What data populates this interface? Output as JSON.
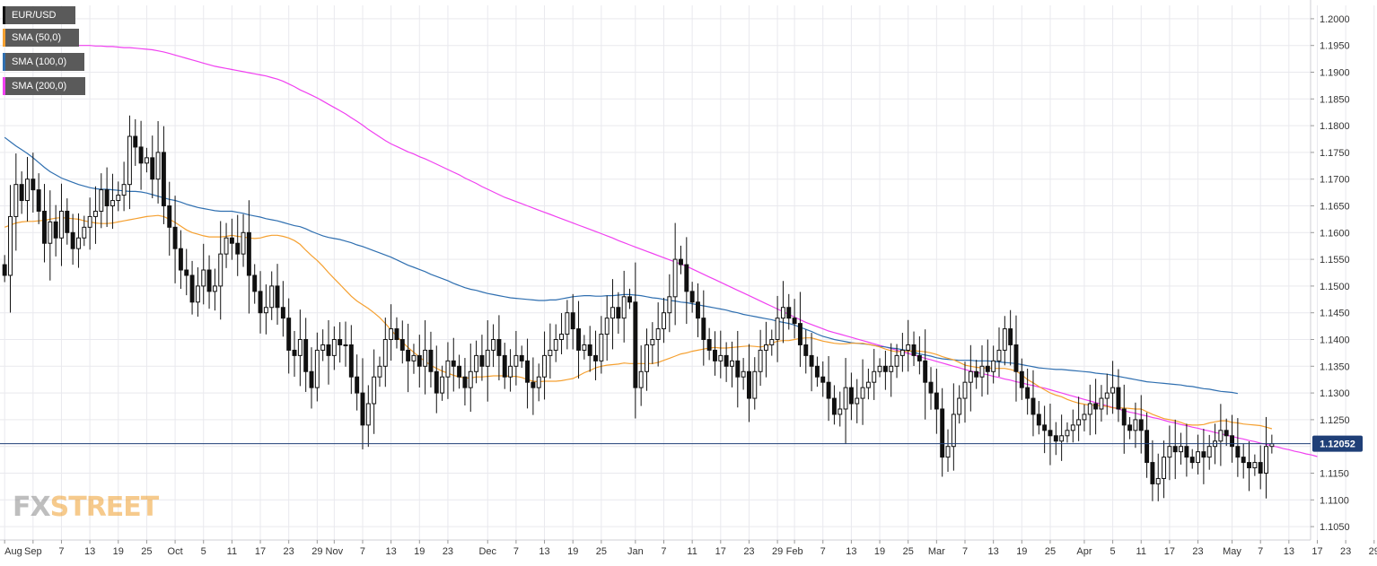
{
  "chart_data": {
    "type": "candlestick",
    "title": "EUR/USD",
    "current_price": "1.12052",
    "colors": {
      "background": "#ffffff",
      "grid": "#e9e9ee",
      "candle_up_fill": "#ffffff",
      "candle_down_fill": "#111111",
      "candle_outline": "#111111",
      "sma50": "#f5a030",
      "sma100": "#2f6fb0",
      "sma200": "#f040f0",
      "price_line": "#1f3f77",
      "price_label_bg": "#1f3f77"
    },
    "legend": [
      {
        "label": "EUR/USD",
        "color": "#111111"
      },
      {
        "label": "SMA (50,0)",
        "color": "#f5a030"
      },
      {
        "label": "SMA (100,0)",
        "color": "#2f6fb0"
      },
      {
        "label": "SMA (200,0)",
        "color": "#f040f0"
      }
    ],
    "y_axis": {
      "range": [
        1.1025,
        1.2025
      ],
      "ticks": [
        "1.2000",
        "1.1950",
        "1.1900",
        "1.1850",
        "1.1800",
        "1.1750",
        "1.1700",
        "1.1650",
        "1.1600",
        "1.1550",
        "1.1500",
        "1.1450",
        "1.1400",
        "1.1350",
        "1.1300",
        "1.1250",
        "1.1200",
        "1.1150",
        "1.1100",
        "1.1050"
      ]
    },
    "x_axis": {
      "labels": [
        {
          "i": 0,
          "text": "Aug"
        },
        {
          "i": 5,
          "text": "Sep"
        },
        {
          "i": 10,
          "text": "7"
        },
        {
          "i": 15,
          "text": "13"
        },
        {
          "i": 20,
          "text": "19"
        },
        {
          "i": 25,
          "text": "25"
        },
        {
          "i": 30,
          "text": "Oct"
        },
        {
          "i": 35,
          "text": "5"
        },
        {
          "i": 40,
          "text": "11"
        },
        {
          "i": 45,
          "text": "17"
        },
        {
          "i": 50,
          "text": "23"
        },
        {
          "i": 55,
          "text": "29"
        },
        {
          "i": 58,
          "text": "Nov"
        },
        {
          "i": 63,
          "text": "7"
        },
        {
          "i": 68,
          "text": "13"
        },
        {
          "i": 73,
          "text": "19"
        },
        {
          "i": 78,
          "text": "23"
        },
        {
          "i": 85,
          "text": "Dec"
        },
        {
          "i": 90,
          "text": "7"
        },
        {
          "i": 95,
          "text": "13"
        },
        {
          "i": 100,
          "text": "19"
        },
        {
          "i": 105,
          "text": "25"
        },
        {
          "i": 111,
          "text": "Jan"
        },
        {
          "i": 116,
          "text": "7"
        },
        {
          "i": 121,
          "text": "11"
        },
        {
          "i": 126,
          "text": "17"
        },
        {
          "i": 131,
          "text": "23"
        },
        {
          "i": 136,
          "text": "29"
        },
        {
          "i": 139,
          "text": "Feb"
        },
        {
          "i": 144,
          "text": "7"
        },
        {
          "i": 149,
          "text": "13"
        },
        {
          "i": 154,
          "text": "19"
        },
        {
          "i": 159,
          "text": "25"
        },
        {
          "i": 164,
          "text": "Mar"
        },
        {
          "i": 169,
          "text": "7"
        },
        {
          "i": 174,
          "text": "13"
        },
        {
          "i": 179,
          "text": "19"
        },
        {
          "i": 184,
          "text": "25"
        },
        {
          "i": 190,
          "text": "Apr"
        },
        {
          "i": 195,
          "text": "5"
        },
        {
          "i": 200,
          "text": "11"
        },
        {
          "i": 205,
          "text": "17"
        },
        {
          "i": 210,
          "text": "23"
        },
        {
          "i": 216,
          "text": "May"
        },
        {
          "i": 221,
          "text": "7"
        },
        {
          "i": 226,
          "text": "13"
        },
        {
          "i": 231,
          "text": "17"
        },
        {
          "i": 236,
          "text": "23"
        },
        {
          "i": 241,
          "text": "29"
        }
      ]
    },
    "candles_note": "OHLC estimated from chart; indices are trading-day slots",
    "closes": [
      1.152,
      1.163,
      1.169,
      1.166,
      1.17,
      1.168,
      1.164,
      1.158,
      1.162,
      1.159,
      1.164,
      1.16,
      1.157,
      1.159,
      1.161,
      1.163,
      1.164,
      1.168,
      1.165,
      1.166,
      1.167,
      1.169,
      1.178,
      1.176,
      1.173,
      1.174,
      1.17,
      1.175,
      1.165,
      1.161,
      1.157,
      1.153,
      1.152,
      1.147,
      1.15,
      1.153,
      1.149,
      1.15,
      1.156,
      1.159,
      1.158,
      1.156,
      1.16,
      1.152,
      1.149,
      1.145,
      1.146,
      1.15,
      1.146,
      1.144,
      1.138,
      1.137,
      1.14,
      1.134,
      1.131,
      1.138,
      1.139,
      1.137,
      1.14,
      1.139,
      1.139,
      1.133,
      1.13,
      1.124,
      1.128,
      1.133,
      1.135,
      1.14,
      1.142,
      1.14,
      1.138,
      1.136,
      1.137,
      1.135,
      1.138,
      1.134,
      1.13,
      1.133,
      1.136,
      1.135,
      1.133,
      1.131,
      1.134,
      1.137,
      1.135,
      1.138,
      1.14,
      1.137,
      1.133,
      1.135,
      1.137,
      1.136,
      1.132,
      1.131,
      1.133,
      1.137,
      1.138,
      1.14,
      1.141,
      1.145,
      1.142,
      1.138,
      1.139,
      1.137,
      1.136,
      1.141,
      1.144,
      1.146,
      1.144,
      1.148,
      1.147,
      1.131,
      1.134,
      1.139,
      1.14,
      1.142,
      1.145,
      1.148,
      1.155,
      1.154,
      1.149,
      1.147,
      1.144,
      1.14,
      1.138,
      1.136,
      1.137,
      1.135,
      1.136,
      1.133,
      1.134,
      1.129,
      1.134,
      1.138,
      1.139,
      1.14,
      1.144,
      1.146,
      1.144,
      1.143,
      1.139,
      1.137,
      1.135,
      1.133,
      1.132,
      1.129,
      1.126,
      1.127,
      1.131,
      1.128,
      1.129,
      1.131,
      1.132,
      1.134,
      1.135,
      1.134,
      1.135,
      1.137,
      1.138,
      1.139,
      1.137,
      1.136,
      1.132,
      1.13,
      1.127,
      1.118,
      1.12,
      1.126,
      1.129,
      1.132,
      1.134,
      1.133,
      1.135,
      1.134,
      1.136,
      1.138,
      1.142,
      1.139,
      1.134,
      1.131,
      1.129,
      1.126,
      1.124,
      1.123,
      1.122,
      1.121,
      1.122,
      1.123,
      1.124,
      1.125,
      1.126,
      1.128,
      1.127,
      1.129,
      1.13,
      1.131,
      1.127,
      1.124,
      1.123,
      1.125,
      1.123,
      1.117,
      1.113,
      1.114,
      1.118,
      1.12,
      1.119,
      1.12,
      1.118,
      1.117,
      1.119,
      1.118,
      1.12,
      1.121,
      1.123,
      1.122,
      1.12,
      1.118,
      1.117,
      1.116,
      1.117,
      1.115,
      1.12,
      1.1205
    ],
    "sma50": [
      1.161,
      1.1614,
      1.1618,
      1.162,
      1.1621,
      1.1621,
      1.1622,
      1.1623,
      1.1625,
      1.1627,
      1.1628,
      1.1627,
      1.1626,
      1.1625,
      1.1622,
      1.162,
      1.1618,
      1.1617,
      1.1617,
      1.1618,
      1.162,
      1.1622,
      1.1624,
      1.1626,
      1.1628,
      1.163,
      1.1631,
      1.1632,
      1.163,
      1.1625,
      1.1619,
      1.1612,
      1.1605,
      1.16,
      1.1597,
      1.1594,
      1.1592,
      1.1592,
      1.1592,
      1.1593,
      1.1595,
      1.1593,
      1.1592,
      1.159,
      1.1589,
      1.159,
      1.1593,
      1.1595,
      1.1595,
      1.1593,
      1.159,
      1.1585,
      1.1578,
      1.1567,
      1.1557,
      1.1548,
      1.1537,
      1.1525,
      1.1514,
      1.1503,
      1.1492,
      1.1481,
      1.1472,
      1.1465,
      1.1458,
      1.145,
      1.1441,
      1.143,
      1.1418,
      1.1406,
      1.1395,
      1.1385,
      1.1376,
      1.1367,
      1.1359,
      1.1352,
      1.1346,
      1.1341,
      1.1337,
      1.1333,
      1.133,
      1.1328,
      1.1328,
      1.133,
      1.133,
      1.1331,
      1.1332,
      1.1332,
      1.1332,
      1.1331,
      1.1331,
      1.1329,
      1.1325,
      1.1322,
      1.1321,
      1.1322,
      1.1322,
      1.1322,
      1.1323,
      1.1325,
      1.1327,
      1.1332,
      1.1338,
      1.1342,
      1.1347,
      1.135,
      1.1352,
      1.1353,
      1.1354,
      1.1356,
      1.1355,
      1.1355,
      1.1355,
      1.1355,
      1.1355,
      1.1357,
      1.1361,
      1.1365,
      1.1369,
      1.1373,
      1.1375,
      1.1378,
      1.138,
      1.1382,
      1.1384,
      1.1385,
      1.1384,
      1.1384,
      1.1385,
      1.1386,
      1.1387,
      1.1388,
      1.1387,
      1.1386,
      1.1388,
      1.1393,
      1.1397,
      1.1398,
      1.1398,
      1.14,
      1.1402,
      1.1403,
      1.1403,
      1.14,
      1.1397,
      1.1395,
      1.1393,
      1.1392,
      1.1392,
      1.1393,
      1.1393,
      1.1393,
      1.1391,
      1.1389,
      1.1386,
      1.1382,
      1.1379,
      1.1377,
      1.1378,
      1.1378,
      1.1379,
      1.1378,
      1.1377,
      1.1375,
      1.1372,
      1.1368,
      1.1365,
      1.1362,
      1.1357,
      1.1352,
      1.135,
      1.1348,
      1.1347,
      1.1347,
      1.1346,
      1.1346,
      1.1346,
      1.1344,
      1.1341,
      1.1334,
      1.1325,
      1.1319,
      1.1312,
      1.1306,
      1.13,
      1.1296,
      1.1293,
      1.1288,
      1.1284,
      1.1281,
      1.1279,
      1.1277,
      1.1277,
      1.1276,
      1.1275,
      1.1272,
      1.1272,
      1.1272,
      1.1271,
      1.127,
      1.127,
      1.1265,
      1.126,
      1.1256,
      1.1252,
      1.125,
      1.1248,
      1.1245,
      1.1241,
      1.124,
      1.124,
      1.1241,
      1.1244,
      1.1246,
      1.1248,
      1.1248,
      1.1245,
      1.1244,
      1.1242,
      1.1241,
      1.124,
      1.1239,
      1.1236,
      1.1233
    ],
    "sma100": [
      1.1778,
      1.177,
      1.1762,
      1.1755,
      1.1748,
      1.174,
      1.1731,
      1.1722,
      1.1714,
      1.1708,
      1.1702,
      1.1698,
      1.1694,
      1.169,
      1.1687,
      1.1684,
      1.1682,
      1.1681,
      1.1681,
      1.168,
      1.1679,
      1.1678,
      1.1677,
      1.1677,
      1.1676,
      1.1674,
      1.1671,
      1.1668,
      1.1665,
      1.1662,
      1.166,
      1.1657,
      1.1653,
      1.165,
      1.1647,
      1.1645,
      1.1643,
      1.1641,
      1.164,
      1.164,
      1.164,
      1.1638,
      1.1636,
      1.1633,
      1.1631,
      1.1629,
      1.1626,
      1.1624,
      1.1622,
      1.1619,
      1.1616,
      1.1613,
      1.1611,
      1.1607,
      1.1602,
      1.1598,
      1.1594,
      1.1591,
      1.1589,
      1.1587,
      1.1584,
      1.1581,
      1.1577,
      1.1574,
      1.157,
      1.1566,
      1.1562,
      1.1558,
      1.1554,
      1.1549,
      1.1544,
      1.1539,
      1.1535,
      1.1531,
      1.1527,
      1.1522,
      1.1518,
      1.1514,
      1.151,
      1.1505,
      1.1501,
      1.1497,
      1.1494,
      1.1492,
      1.1489,
      1.1486,
      1.1484,
      1.1482,
      1.148,
      1.1478,
      1.1477,
      1.1476,
      1.1475,
      1.1474,
      1.1473,
      1.1473,
      1.1474,
      1.1474,
      1.1476,
      1.1478,
      1.148,
      1.1481,
      1.1482,
      1.1482,
      1.1481,
      1.1481,
      1.1482,
      1.1482,
      1.1483,
      1.1484,
      1.1484,
      1.1483,
      1.1482,
      1.148,
      1.1478,
      1.1477,
      1.1475,
      1.1473,
      1.1472,
      1.147,
      1.1469,
      1.1467,
      1.1465,
      1.1463,
      1.1461,
      1.1459,
      1.1457,
      1.1455,
      1.1452,
      1.145,
      1.1447,
      1.1445,
      1.1443,
      1.1441,
      1.1439,
      1.1437,
      1.1434,
      1.1432,
      1.143,
      1.1427,
      1.1423,
      1.1419,
      1.1415,
      1.141,
      1.1406,
      1.1403,
      1.14,
      1.1398,
      1.1396,
      1.1394,
      1.1393,
      1.1392,
      1.1391,
      1.1389,
      1.1387,
      1.1386,
      1.1384,
      1.1383,
      1.1381,
      1.1379,
      1.1376,
      1.1373,
      1.1371,
      1.1369,
      1.1366,
      1.1364,
      1.1363,
      1.1362,
      1.1361,
      1.1361,
      1.1361,
      1.136,
      1.136,
      1.136,
      1.1359,
      1.1358,
      1.1357,
      1.1356,
      1.1355,
      1.1353,
      1.1351,
      1.1349,
      1.1347,
      1.1346,
      1.1345,
      1.1344,
      1.1344,
      1.1343,
      1.1342,
      1.1341,
      1.134,
      1.1339,
      1.1337,
      1.1336,
      1.1335,
      1.1333,
      1.1331,
      1.1329,
      1.1327,
      1.1325,
      1.1323,
      1.1321,
      1.132,
      1.1319,
      1.1318,
      1.1317,
      1.1316,
      1.1315,
      1.1313,
      1.1312,
      1.131,
      1.1308,
      1.1307,
      1.1305,
      1.1303,
      1.1302,
      1.1301,
      1.1299
    ],
    "sma200": [
      1.1965,
      1.1963,
      1.1961,
      1.196,
      1.1959,
      1.1958,
      1.1957,
      1.1956,
      1.1955,
      1.1954,
      1.1953,
      1.1952,
      1.1951,
      1.195,
      1.195,
      1.195,
      1.1949,
      1.1949,
      1.1948,
      1.1948,
      1.1947,
      1.1946,
      1.1946,
      1.1945,
      1.1944,
      1.1943,
      1.1942,
      1.194,
      1.1938,
      1.1935,
      1.1932,
      1.1929,
      1.1926,
      1.1923,
      1.192,
      1.1917,
      1.1914,
      1.1911,
      1.1909,
      1.1907,
      1.1905,
      1.1903,
      1.1901,
      1.1899,
      1.1897,
      1.1895,
      1.1893,
      1.189,
      1.1887,
      1.1883,
      1.1878,
      1.1873,
      1.1867,
      1.1862,
      1.1857,
      1.1852,
      1.1846,
      1.184,
      1.1834,
      1.1828,
      1.1822,
      1.1815,
      1.1808,
      1.1801,
      1.1793,
      1.1786,
      1.1779,
      1.1772,
      1.1766,
      1.1761,
      1.1756,
      1.1751,
      1.1747,
      1.1742,
      1.1738,
      1.1733,
      1.1728,
      1.1723,
      1.1718,
      1.1713,
      1.1708,
      1.1702,
      1.1697,
      1.1692,
      1.1686,
      1.1681,
      1.1676,
      1.1671,
      1.1666,
      1.1662,
      1.1658,
      1.1654,
      1.165,
      1.1646,
      1.1642,
      1.1638,
      1.1634,
      1.163,
      1.1626,
      1.1622,
      1.1618,
      1.1614,
      1.161,
      1.1606,
      1.1602,
      1.1598,
      1.1594,
      1.159,
      1.1585,
      1.1581,
      1.1577,
      1.1573,
      1.1569,
      1.1565,
      1.1561,
      1.1557,
      1.1553,
      1.1549,
      1.1545,
      1.1541,
      1.1537,
      1.1532,
      1.1527,
      1.1522,
      1.1517,
      1.1512,
      1.1507,
      1.1502,
      1.1497,
      1.1492,
      1.1487,
      1.1482,
      1.1477,
      1.1472,
      1.1467,
      1.1462,
      1.1457,
      1.1452,
      1.1447,
      1.1442,
      1.1437,
      1.1432,
      1.1428,
      1.1424,
      1.142,
      1.1416,
      1.1413,
      1.141,
      1.1407,
      1.1404,
      1.1401,
      1.1398,
      1.1395,
      1.1392,
      1.1389,
      1.1386,
      1.1383,
      1.138,
      1.1377,
      1.1374,
      1.1371,
      1.1368,
      1.1365,
      1.1362,
      1.1359,
      1.1356,
      1.1353,
      1.135,
      1.1347,
      1.1344,
      1.1341,
      1.1339,
      1.1336,
      1.1334,
      1.1331,
      1.1329,
      1.1326,
      1.1324,
      1.1321,
      1.1319,
      1.1316,
      1.1314,
      1.1311,
      1.1309,
      1.1306,
      1.1303,
      1.13,
      1.1297,
      1.1294,
      1.1291,
      1.1288,
      1.1285,
      1.1282,
      1.1279,
      1.1276,
      1.1273,
      1.127,
      1.1267,
      1.1264,
      1.1262,
      1.1259,
      1.1257,
      1.1254,
      1.1252,
      1.1249,
      1.1246,
      1.1244,
      1.1241,
      1.1239,
      1.1236,
      1.1234,
      1.1231,
      1.1229,
      1.1226,
      1.1224,
      1.1221,
      1.1219,
      1.1216,
      1.1214,
      1.1211,
      1.1209,
      1.1206,
      1.1204,
      1.1201,
      1.1199,
      1.1196,
      1.1194,
      1.1191,
      1.1189,
      1.1186,
      1.1184,
      1.1181
    ],
    "watermark": {
      "part1": "FX",
      "part2": "STREET"
    }
  }
}
